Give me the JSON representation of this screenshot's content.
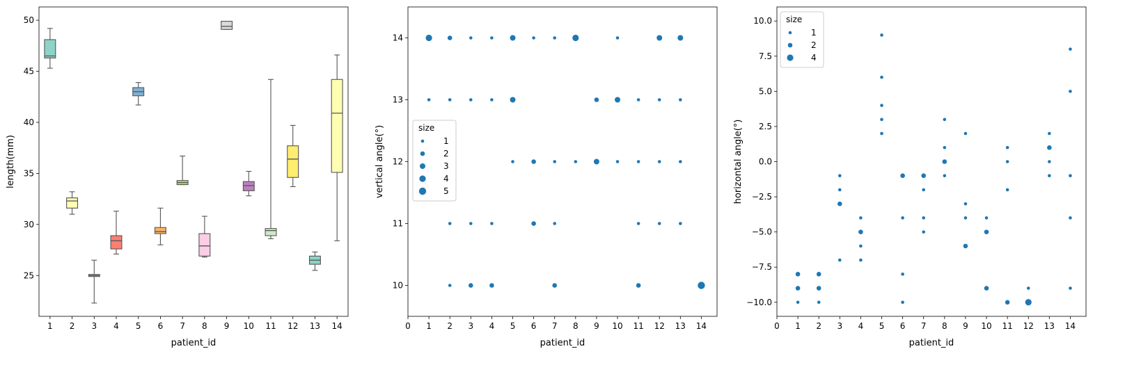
{
  "chart_data": [
    {
      "type": "box",
      "xlabel": "patient_id",
      "ylabel": "length(mm)",
      "ylim": [
        21,
        51.3
      ],
      "yticks": [
        "25",
        "30",
        "35",
        "40",
        "45",
        "50"
      ],
      "categories": [
        "1",
        "2",
        "3",
        "4",
        "5",
        "6",
        "7",
        "8",
        "9",
        "10",
        "11",
        "12",
        "13",
        "14"
      ],
      "boxes": [
        {
          "id": "1",
          "min": 45.3,
          "q1": 46.3,
          "median": 46.5,
          "q3": 48.1,
          "max": 49.2,
          "color": "#8dd3c7"
        },
        {
          "id": "2",
          "min": 31.0,
          "q1": 31.6,
          "median": 32.3,
          "q3": 32.6,
          "max": 33.2,
          "color": "#ffffb3"
        },
        {
          "id": "3",
          "min": 22.3,
          "q1": 24.9,
          "median": 25.0,
          "q3": 25.1,
          "max": 26.5,
          "color": "#bebada"
        },
        {
          "id": "4",
          "min": 27.1,
          "q1": 27.6,
          "median": 28.4,
          "q3": 28.9,
          "max": 31.3,
          "color": "#fb8072"
        },
        {
          "id": "5",
          "min": 41.7,
          "q1": 42.6,
          "median": 43.0,
          "q3": 43.4,
          "max": 43.9,
          "color": "#80b1d3"
        },
        {
          "id": "6",
          "min": 28.0,
          "q1": 29.1,
          "median": 29.3,
          "q3": 29.7,
          "max": 31.6,
          "color": "#fdb462"
        },
        {
          "id": "7",
          "min": 33.9,
          "q1": 33.9,
          "median": 34.1,
          "q3": 34.3,
          "max": 36.7,
          "color": "#b3de69"
        },
        {
          "id": "8",
          "min": 26.8,
          "q1": 26.9,
          "median": 27.9,
          "q3": 29.1,
          "max": 30.8,
          "color": "#fccde5"
        },
        {
          "id": "9",
          "min": 49.1,
          "q1": 49.1,
          "median": 49.4,
          "q3": 49.9,
          "max": 49.9,
          "color": "#d9d9d9"
        },
        {
          "id": "10",
          "min": 32.8,
          "q1": 33.3,
          "median": 33.8,
          "q3": 34.2,
          "max": 35.2,
          "color": "#bc80bd"
        },
        {
          "id": "11",
          "min": 28.6,
          "q1": 28.9,
          "median": 29.4,
          "q3": 29.6,
          "max": 44.2,
          "color": "#ccebc5"
        },
        {
          "id": "12",
          "min": 33.7,
          "q1": 34.6,
          "median": 36.4,
          "q3": 37.7,
          "max": 39.7,
          "color": "#ffed6f"
        },
        {
          "id": "13",
          "min": 25.5,
          "q1": 26.1,
          "median": 26.5,
          "q3": 26.9,
          "max": 27.3,
          "color": "#8dd3c7"
        },
        {
          "id": "14",
          "min": 28.4,
          "q1": 35.1,
          "median": 40.9,
          "q3": 44.2,
          "max": 46.6,
          "color": "#ffffb3"
        }
      ]
    },
    {
      "type": "scatter",
      "xlabel": "patient_id",
      "ylabel": "vertical angle(°)",
      "xlim": [
        0,
        14.75
      ],
      "ylim": [
        9.5,
        14.5
      ],
      "xticks": [
        "0",
        "1",
        "2",
        "3",
        "4",
        "5",
        "6",
        "7",
        "8",
        "9",
        "10",
        "11",
        "12",
        "13",
        "14"
      ],
      "yticks": [
        "10",
        "11",
        "12",
        "13",
        "14"
      ],
      "color": "#1f77b4",
      "legend": {
        "title": "size",
        "location": "center-left",
        "entries": [
          1,
          2,
          3,
          4,
          5
        ]
      },
      "points": [
        [
          1,
          14,
          4
        ],
        [
          2,
          14,
          2
        ],
        [
          3,
          14,
          1
        ],
        [
          4,
          14,
          1
        ],
        [
          5,
          14,
          3
        ],
        [
          6,
          14,
          1
        ],
        [
          7,
          14,
          1
        ],
        [
          8,
          14,
          4
        ],
        [
          10,
          14,
          1
        ],
        [
          12,
          14,
          3
        ],
        [
          13,
          14,
          3
        ],
        [
          1,
          13,
          1
        ],
        [
          2,
          13,
          1
        ],
        [
          3,
          13,
          1
        ],
        [
          4,
          13,
          1
        ],
        [
          5,
          13,
          3
        ],
        [
          9,
          13,
          2
        ],
        [
          10,
          13,
          3
        ],
        [
          11,
          13,
          1
        ],
        [
          12,
          13,
          1
        ],
        [
          13,
          13,
          1
        ],
        [
          5,
          12,
          1
        ],
        [
          6,
          12,
          2
        ],
        [
          7,
          12,
          1
        ],
        [
          8,
          12,
          1
        ],
        [
          9,
          12,
          3
        ],
        [
          10,
          12,
          1
        ],
        [
          11,
          12,
          1
        ],
        [
          12,
          12,
          1
        ],
        [
          13,
          12,
          1
        ],
        [
          2,
          11,
          1
        ],
        [
          3,
          11,
          1
        ],
        [
          4,
          11,
          1
        ],
        [
          6,
          11,
          2
        ],
        [
          7,
          11,
          1
        ],
        [
          11,
          11,
          1
        ],
        [
          12,
          11,
          1
        ],
        [
          13,
          11,
          1
        ],
        [
          2,
          10,
          1
        ],
        [
          3,
          10,
          2
        ],
        [
          4,
          10,
          2
        ],
        [
          7,
          10,
          2
        ],
        [
          11,
          10,
          2
        ],
        [
          14,
          10,
          5
        ]
      ]
    },
    {
      "type": "scatter",
      "xlabel": "patient_id",
      "ylabel": "horizontal angle(°)",
      "xlim": [
        0,
        14.75
      ],
      "ylim": [
        -11,
        11
      ],
      "xticks": [
        "0",
        "1",
        "2",
        "3",
        "4",
        "5",
        "6",
        "7",
        "8",
        "9",
        "10",
        "11",
        "12",
        "13",
        "14"
      ],
      "yticks": [
        "−10.0",
        "−7.5",
        "−5.0",
        "−2.5",
        "0.0",
        "2.5",
        "5.0",
        "7.5",
        "10.0"
      ],
      "color": "#1f77b4",
      "legend": {
        "title": "size",
        "location": "top-left",
        "entries": [
          1,
          2,
          4
        ]
      },
      "points": [
        [
          1,
          -8,
          2
        ],
        [
          1,
          -9,
          2
        ],
        [
          1,
          -10,
          1
        ],
        [
          2,
          -8,
          2
        ],
        [
          2,
          -9,
          2
        ],
        [
          2,
          -10,
          1
        ],
        [
          3,
          -1,
          1
        ],
        [
          3,
          -2,
          1
        ],
        [
          3,
          -3,
          2
        ],
        [
          3,
          -7,
          1
        ],
        [
          4,
          -4,
          1
        ],
        [
          4,
          -5,
          2
        ],
        [
          4,
          -6,
          1
        ],
        [
          4,
          -7,
          1
        ],
        [
          5,
          9,
          1
        ],
        [
          5,
          6,
          1
        ],
        [
          5,
          4,
          1
        ],
        [
          5,
          3,
          1
        ],
        [
          5,
          2,
          1
        ],
        [
          6,
          -1,
          2
        ],
        [
          6,
          -4,
          1
        ],
        [
          6,
          -8,
          1
        ],
        [
          6,
          -10,
          1
        ],
        [
          7,
          -1,
          2
        ],
        [
          7,
          -2,
          1
        ],
        [
          7,
          -4,
          1
        ],
        [
          7,
          -5,
          1
        ],
        [
          8,
          3,
          1
        ],
        [
          8,
          1,
          1
        ],
        [
          8,
          0,
          2
        ],
        [
          8,
          -1,
          1
        ],
        [
          9,
          2,
          1
        ],
        [
          9,
          -3,
          1
        ],
        [
          9,
          -4,
          1
        ],
        [
          9,
          -6,
          2
        ],
        [
          10,
          -4,
          1
        ],
        [
          10,
          -5,
          2
        ],
        [
          10,
          -9,
          2
        ],
        [
          11,
          1,
          1
        ],
        [
          11,
          0,
          1
        ],
        [
          11,
          -2,
          1
        ],
        [
          11,
          -10,
          2
        ],
        [
          12,
          -9,
          1
        ],
        [
          12,
          -10,
          4
        ],
        [
          13,
          2,
          1
        ],
        [
          13,
          1,
          2
        ],
        [
          13,
          0,
          1
        ],
        [
          13,
          -1,
          1
        ],
        [
          14,
          8,
          1
        ],
        [
          14,
          5,
          1
        ],
        [
          14,
          -1,
          1
        ],
        [
          14,
          -4,
          1
        ],
        [
          14,
          -9,
          1
        ]
      ]
    }
  ]
}
